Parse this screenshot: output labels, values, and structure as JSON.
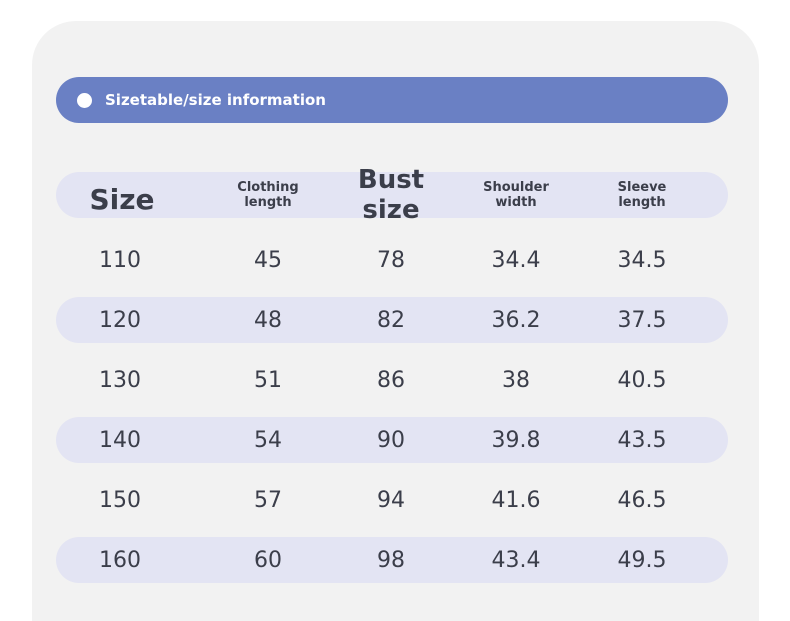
{
  "banner": {
    "title": "Sizetable/size information"
  },
  "colors": {
    "banner": "#6a80c4",
    "stripe": "#e3e4f3",
    "card": "#f2f2f2",
    "text": "#3b3e4a"
  },
  "table": {
    "headers": [
      {
        "line1": "Size",
        "line2": ""
      },
      {
        "line1": "Clothing",
        "line2": "length"
      },
      {
        "line1": "Bust size",
        "line2": ""
      },
      {
        "line1": "Shoulder",
        "line2": "width"
      },
      {
        "line1": "Sleeve",
        "line2": "length"
      }
    ],
    "rows": [
      [
        "110",
        "45",
        "78",
        "34.4",
        "34.5"
      ],
      [
        "120",
        "48",
        "82",
        "36.2",
        "37.5"
      ],
      [
        "130",
        "51",
        "86",
        "38",
        "40.5"
      ],
      [
        "140",
        "54",
        "90",
        "39.8",
        "43.5"
      ],
      [
        "150",
        "57",
        "94",
        "41.6",
        "46.5"
      ],
      [
        "160",
        "60",
        "98",
        "43.4",
        "49.5"
      ]
    ]
  }
}
